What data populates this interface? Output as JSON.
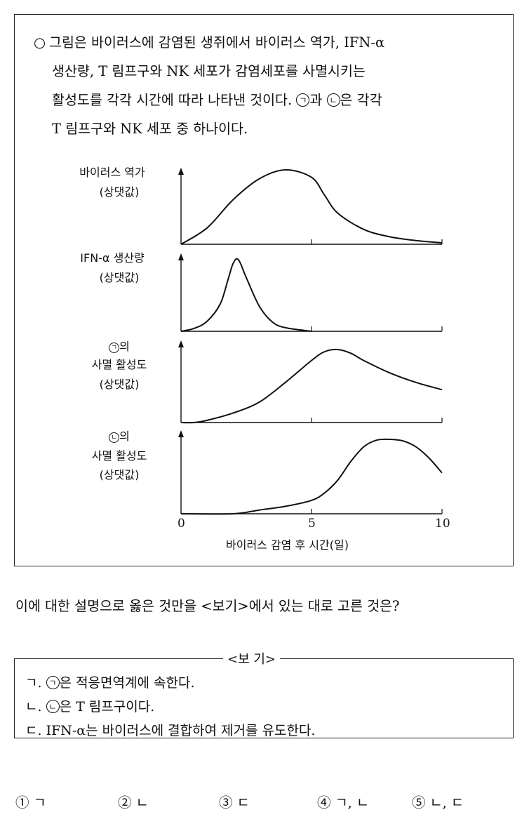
{
  "intro": {
    "bullet": "○",
    "line1": "그림은 바이러스에 감염된 생쥐에서 바이러스 역가, IFN-α",
    "line2": "생산량, T 림프구와 NK 세포가 감염세포를 사멸시키는",
    "line3_a": "활성도를 각각 시간에 따라 나타낸 것이다.",
    "line3_b": "과",
    "line3_c": "은 각각",
    "line4": "T 림프구와 NK 세포 중 하나이다.",
    "mark_a": "ㄱ",
    "mark_b": "ㄴ"
  },
  "chart_data": {
    "type": "line",
    "xlabel": "바이러스 감염 후 시간(일)",
    "xticks": [
      "0",
      "5",
      "10"
    ],
    "xlim": [
      0,
      10
    ],
    "panels": [
      {
        "label_lines": [
          "바이러스 역가",
          "(상댓값)"
        ],
        "x": [
          0,
          1,
          2,
          3,
          4,
          5,
          5.5,
          6,
          7,
          8,
          9,
          10
        ],
        "y": [
          0,
          0.22,
          0.6,
          0.88,
          1.0,
          0.9,
          0.66,
          0.42,
          0.2,
          0.1,
          0.05,
          0.02
        ]
      },
      {
        "label_lines": [
          "IFN-α 생산량",
          "(상댓값)"
        ],
        "x": [
          0,
          0.5,
          1,
          1.5,
          1.8,
          2.0,
          2.2,
          2.5,
          3.0,
          3.5,
          4.0,
          5.0
        ],
        "y": [
          0,
          0.04,
          0.14,
          0.38,
          0.72,
          0.95,
          1.0,
          0.75,
          0.35,
          0.13,
          0.05,
          0.0
        ]
      },
      {
        "label_mark": "ㄱ",
        "label_lines": [
          "의",
          "사멸 활성도",
          "(상댓값)"
        ],
        "x": [
          0,
          0.5,
          1,
          2,
          3,
          4,
          5,
          5.5,
          6,
          6.5,
          7,
          8,
          9,
          10
        ],
        "y": [
          0,
          0.0,
          0.03,
          0.13,
          0.28,
          0.55,
          0.85,
          0.97,
          1.0,
          0.95,
          0.85,
          0.68,
          0.55,
          0.45
        ]
      },
      {
        "label_mark": "ㄴ",
        "label_lines": [
          "의",
          "사멸 활성도",
          "(상댓값)"
        ],
        "x": [
          0,
          2,
          3,
          4,
          5,
          5.5,
          6,
          6.5,
          7,
          7.5,
          8,
          8.5,
          9,
          9.5,
          10
        ],
        "y": [
          0,
          0.0,
          0.05,
          0.1,
          0.18,
          0.28,
          0.45,
          0.7,
          0.9,
          0.99,
          1.0,
          0.98,
          0.9,
          0.75,
          0.55
        ]
      }
    ]
  },
  "question": "이에 대한 설명으로 옳은 것만을 <보기>에서 있는 대로 고른 것은?",
  "bogi": {
    "title": "<보 기>",
    "items": [
      {
        "prefix": "ㄱ. ",
        "mark": "ㄱ",
        "text": "은 적응면역계에 속한다."
      },
      {
        "prefix": "ㄴ. ",
        "mark": "ㄴ",
        "text": "은 T 림프구이다."
      },
      {
        "prefix": "ㄷ. ",
        "mark": "",
        "text": "IFN-α는 바이러스에 결합하여 제거를 유도한다."
      }
    ]
  },
  "choices": [
    "① ㄱ",
    "② ㄴ",
    "③ ㄷ",
    "④ ㄱ, ㄴ",
    "⑤ ㄴ, ㄷ"
  ]
}
